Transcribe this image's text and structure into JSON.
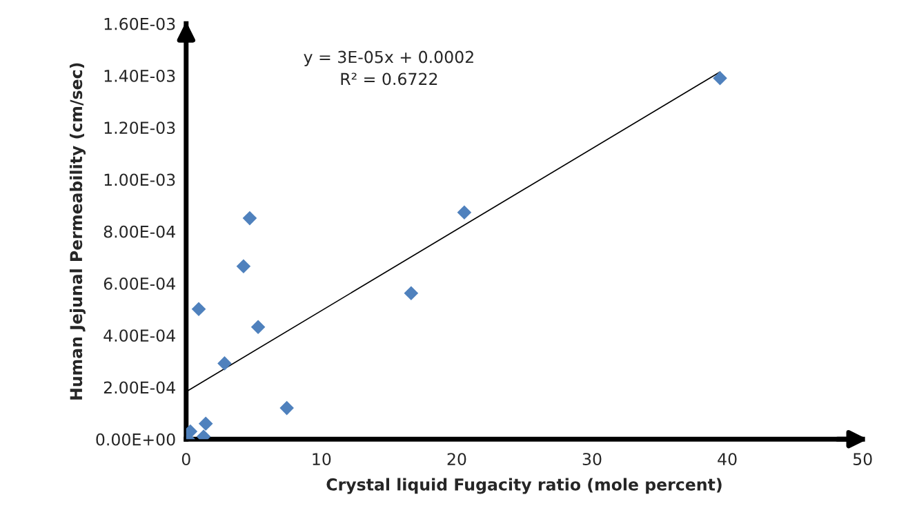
{
  "chart_data": {
    "type": "scatter",
    "xlabel": "Crystal liquid Fugacity ratio (mole percent)",
    "ylabel": "Human Jejunal Permeability (cm/sec)",
    "annotations": [
      "y = 3E-05x + 0.0002\nR² = 0.6722"
    ],
    "series": [
      {
        "color": "#4f81bd",
        "marker": "diamond",
        "x": [
          39.46,
          20.56,
          16.63,
          4.7,
          4.24,
          0.93,
          5.32,
          2.84,
          7.44,
          1.45,
          1.29,
          0.31,
          0.15
        ],
        "values": [
          0.00139,
          0.000873,
          0.000562,
          0.000851,
          0.000666,
          0.000501,
          0.000432,
          0.000292,
          0.00012,
          6e-05,
          1e-05,
          3e-05,
          0.0
        ]
      },
      {
        "type": "line",
        "color": "#000000",
        "marker": "none",
        "x": [
          0,
          39.46
        ],
        "values": [
          0.000183,
          0.001414
        ]
      }
    ],
    "xlim": [
      0,
      50
    ],
    "xticks": [
      0,
      10,
      20,
      30,
      40,
      50
    ],
    "ylim": [
      0,
      0.0016
    ],
    "yticks": [
      {
        "value": 0,
        "label": "0.00E+00"
      },
      {
        "value": 0.0002,
        "label": "2.00E-04"
      },
      {
        "value": 0.0004,
        "label": "4.00E-04"
      },
      {
        "value": 0.0006,
        "label": "6.00E-04"
      },
      {
        "value": 0.0008,
        "label": "8.00E-04"
      },
      {
        "value": 0.001,
        "label": "1.00E-03"
      },
      {
        "value": 0.0012,
        "label": "1.20E-03"
      },
      {
        "value": 0.0014,
        "label": "1.40E-03"
      },
      {
        "value": 0.0016,
        "label": "1.60E-03"
      }
    ],
    "grid": false,
    "legend": false
  }
}
